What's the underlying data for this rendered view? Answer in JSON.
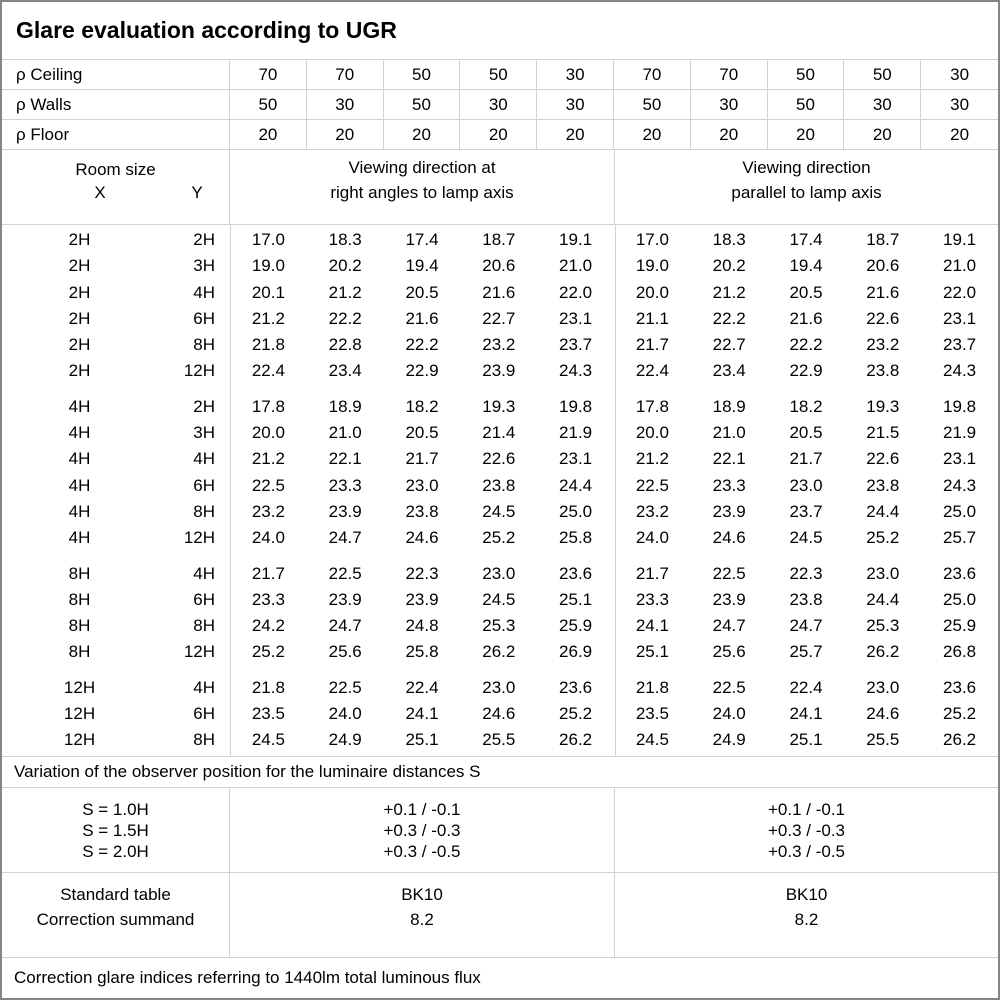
{
  "title": "Glare evaluation according to UGR",
  "colors": {
    "grid_line": "#d2d2d2",
    "outer_border": "#868686",
    "text": "#000000",
    "background": "#ffffff"
  },
  "reflectance": {
    "rows": [
      {
        "label": "ρ Ceiling",
        "values": [
          "70",
          "70",
          "50",
          "50",
          "30",
          "70",
          "70",
          "50",
          "50",
          "30"
        ]
      },
      {
        "label": "ρ Walls",
        "values": [
          "50",
          "30",
          "50",
          "30",
          "30",
          "50",
          "30",
          "50",
          "30",
          "30"
        ]
      },
      {
        "label": "ρ Floor",
        "values": [
          "20",
          "20",
          "20",
          "20",
          "20",
          "20",
          "20",
          "20",
          "20",
          "20"
        ]
      }
    ]
  },
  "header": {
    "room_size_label": "Room size",
    "x_label": "X",
    "y_label": "Y",
    "right_angles_line1": "Viewing direction at",
    "right_angles_line2": "right angles to lamp axis",
    "parallel_line1": "Viewing direction",
    "parallel_line2": "parallel to lamp axis"
  },
  "ugr_blocks": [
    {
      "rows": [
        {
          "x": "2H",
          "y": "2H",
          "right_angles": [
            "17.0",
            "18.3",
            "17.4",
            "18.7",
            "19.1"
          ],
          "parallel": [
            "17.0",
            "18.3",
            "17.4",
            "18.7",
            "19.1"
          ]
        },
        {
          "x": "2H",
          "y": "3H",
          "right_angles": [
            "19.0",
            "20.2",
            "19.4",
            "20.6",
            "21.0"
          ],
          "parallel": [
            "19.0",
            "20.2",
            "19.4",
            "20.6",
            "21.0"
          ]
        },
        {
          "x": "2H",
          "y": "4H",
          "right_angles": [
            "20.1",
            "21.2",
            "20.5",
            "21.6",
            "22.0"
          ],
          "parallel": [
            "20.0",
            "21.2",
            "20.5",
            "21.6",
            "22.0"
          ]
        },
        {
          "x": "2H",
          "y": "6H",
          "right_angles": [
            "21.2",
            "22.2",
            "21.6",
            "22.7",
            "23.1"
          ],
          "parallel": [
            "21.1",
            "22.2",
            "21.6",
            "22.6",
            "23.1"
          ]
        },
        {
          "x": "2H",
          "y": "8H",
          "right_angles": [
            "21.8",
            "22.8",
            "22.2",
            "23.2",
            "23.7"
          ],
          "parallel": [
            "21.7",
            "22.7",
            "22.2",
            "23.2",
            "23.7"
          ]
        },
        {
          "x": "2H",
          "y": "12H",
          "right_angles": [
            "22.4",
            "23.4",
            "22.9",
            "23.9",
            "24.3"
          ],
          "parallel": [
            "22.4",
            "23.4",
            "22.9",
            "23.8",
            "24.3"
          ]
        }
      ]
    },
    {
      "rows": [
        {
          "x": "4H",
          "y": "2H",
          "right_angles": [
            "17.8",
            "18.9",
            "18.2",
            "19.3",
            "19.8"
          ],
          "parallel": [
            "17.8",
            "18.9",
            "18.2",
            "19.3",
            "19.8"
          ]
        },
        {
          "x": "4H",
          "y": "3H",
          "right_angles": [
            "20.0",
            "21.0",
            "20.5",
            "21.4",
            "21.9"
          ],
          "parallel": [
            "20.0",
            "21.0",
            "20.5",
            "21.5",
            "21.9"
          ]
        },
        {
          "x": "4H",
          "y": "4H",
          "right_angles": [
            "21.2",
            "22.1",
            "21.7",
            "22.6",
            "23.1"
          ],
          "parallel": [
            "21.2",
            "22.1",
            "21.7",
            "22.6",
            "23.1"
          ]
        },
        {
          "x": "4H",
          "y": "6H",
          "right_angles": [
            "22.5",
            "23.3",
            "23.0",
            "23.8",
            "24.4"
          ],
          "parallel": [
            "22.5",
            "23.3",
            "23.0",
            "23.8",
            "24.3"
          ]
        },
        {
          "x": "4H",
          "y": "8H",
          "right_angles": [
            "23.2",
            "23.9",
            "23.8",
            "24.5",
            "25.0"
          ],
          "parallel": [
            "23.2",
            "23.9",
            "23.7",
            "24.4",
            "25.0"
          ]
        },
        {
          "x": "4H",
          "y": "12H",
          "right_angles": [
            "24.0",
            "24.7",
            "24.6",
            "25.2",
            "25.8"
          ],
          "parallel": [
            "24.0",
            "24.6",
            "24.5",
            "25.2",
            "25.7"
          ]
        }
      ]
    },
    {
      "rows": [
        {
          "x": "8H",
          "y": "4H",
          "right_angles": [
            "21.7",
            "22.5",
            "22.3",
            "23.0",
            "23.6"
          ],
          "parallel": [
            "21.7",
            "22.5",
            "22.3",
            "23.0",
            "23.6"
          ]
        },
        {
          "x": "8H",
          "y": "6H",
          "right_angles": [
            "23.3",
            "23.9",
            "23.9",
            "24.5",
            "25.1"
          ],
          "parallel": [
            "23.3",
            "23.9",
            "23.8",
            "24.4",
            "25.0"
          ]
        },
        {
          "x": "8H",
          "y": "8H",
          "right_angles": [
            "24.2",
            "24.7",
            "24.8",
            "25.3",
            "25.9"
          ],
          "parallel": [
            "24.1",
            "24.7",
            "24.7",
            "25.3",
            "25.9"
          ]
        },
        {
          "x": "8H",
          "y": "12H",
          "right_angles": [
            "25.2",
            "25.6",
            "25.8",
            "26.2",
            "26.9"
          ],
          "parallel": [
            "25.1",
            "25.6",
            "25.7",
            "26.2",
            "26.8"
          ]
        }
      ]
    },
    {
      "rows": [
        {
          "x": "12H",
          "y": "4H",
          "right_angles": [
            "21.8",
            "22.5",
            "22.4",
            "23.0",
            "23.6"
          ],
          "parallel": [
            "21.8",
            "22.5",
            "22.4",
            "23.0",
            "23.6"
          ]
        },
        {
          "x": "12H",
          "y": "6H",
          "right_angles": [
            "23.5",
            "24.0",
            "24.1",
            "24.6",
            "25.2"
          ],
          "parallel": [
            "23.5",
            "24.0",
            "24.1",
            "24.6",
            "25.2"
          ]
        },
        {
          "x": "12H",
          "y": "8H",
          "right_angles": [
            "24.5",
            "24.9",
            "25.1",
            "25.5",
            "26.2"
          ],
          "parallel": [
            "24.5",
            "24.9",
            "25.1",
            "25.5",
            "26.2"
          ]
        }
      ]
    }
  ],
  "variation_note": "Variation of the observer position for the luminaire distances S",
  "spacing": {
    "labels": [
      "S = 1.0H",
      "S = 1.5H",
      "S = 2.0H"
    ],
    "right_angles_values": [
      "+0.1 / -0.1",
      "+0.3 / -0.3",
      "+0.3 / -0.5"
    ],
    "parallel_values": [
      "+0.1 / -0.1",
      "+0.3 / -0.3",
      "+0.3 / -0.5"
    ]
  },
  "standard": {
    "labels": [
      "Standard table",
      "Correction summand"
    ],
    "right_angles_values": [
      "BK10",
      "8.2"
    ],
    "parallel_values": [
      "BK10",
      "8.2"
    ]
  },
  "footer_note": "Correction glare indices referring to 1440lm total luminous flux"
}
